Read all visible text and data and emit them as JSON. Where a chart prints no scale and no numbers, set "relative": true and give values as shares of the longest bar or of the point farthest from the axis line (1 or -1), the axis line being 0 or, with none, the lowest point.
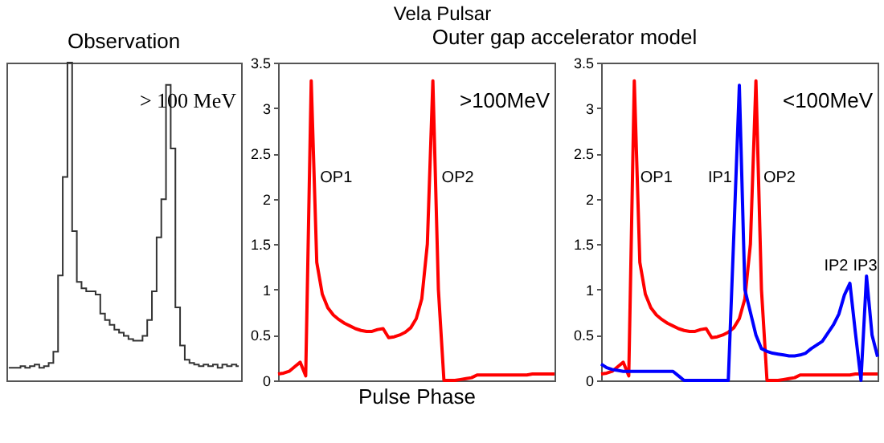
{
  "chart_data": [
    {
      "type": "step",
      "title": "Observation",
      "relative": true,
      "grid": false,
      "categories": [
        null,
        null,
        null,
        null,
        null,
        null,
        null,
        null,
        null,
        null,
        null,
        null,
        null,
        null,
        null,
        null,
        null,
        null,
        null,
        null,
        null,
        null,
        null,
        null,
        null,
        null,
        null,
        null,
        null,
        null,
        null,
        null,
        null,
        null,
        null,
        null,
        null,
        null,
        null,
        null,
        null,
        null,
        null,
        null,
        null,
        null,
        null,
        null,
        null,
        null
      ],
      "series": [
        {
          "color": "#333333",
          "values": [
            0.04,
            0.04,
            0.04,
            0.045,
            0.04,
            0.045,
            0.05,
            0.04,
            0.045,
            0.055,
            0.09,
            0.33,
            0.64,
            1.0,
            0.47,
            0.31,
            0.29,
            0.28,
            0.28,
            0.27,
            0.21,
            0.19,
            0.175,
            0.16,
            0.15,
            0.14,
            0.13,
            0.125,
            0.125,
            0.14,
            0.19,
            0.28,
            0.45,
            0.57,
            0.93,
            0.73,
            0.23,
            0.11,
            0.065,
            0.055,
            0.05,
            0.045,
            0.05,
            0.045,
            0.05,
            0.04,
            0.05,
            0.045,
            0.05,
            0.045
          ]
        }
      ],
      "annotations": [
        "> 100 MeV"
      ]
    },
    {
      "type": "line",
      "title": "Vela Pulsar",
      "subtitle": "Outer gap accelerator model",
      "xlabel": "Pulse Phase",
      "grid": false,
      "categories": [
        null,
        null,
        null,
        null,
        null,
        null,
        null,
        null,
        null,
        null,
        null,
        null,
        null,
        null,
        null,
        null,
        null,
        null,
        null,
        null,
        null,
        null,
        null,
        null,
        null,
        null,
        null,
        null,
        null,
        null,
        null,
        null,
        null,
        null,
        null,
        null,
        null,
        null,
        null,
        null,
        null,
        null,
        null,
        null,
        null,
        null,
        null,
        null,
        null,
        null,
        null
      ],
      "ylim": [
        0,
        3.5
      ],
      "yticks": [
        0,
        0.5,
        1,
        1.5,
        2,
        2.5,
        3,
        3.5
      ],
      "series": [
        {
          "color": "#ff0000",
          "values": [
            0.07,
            0.08,
            0.1,
            0.15,
            0.2,
            0.05,
            3.3,
            1.3,
            0.95,
            0.8,
            0.72,
            0.67,
            0.63,
            0.6,
            0.57,
            0.55,
            0.54,
            0.54,
            0.56,
            0.57,
            0.47,
            0.48,
            0.5,
            0.53,
            0.58,
            0.68,
            0.9,
            1.5,
            3.3,
            1.0,
            0,
            0,
            0,
            0.01,
            0.02,
            0.03,
            0.06,
            0.06,
            0.06,
            0.06,
            0.06,
            0.06,
            0.06,
            0.06,
            0.06,
            0.06,
            0.07,
            0.07,
            0.07,
            0.07,
            0.07
          ]
        }
      ],
      "annotations": [
        ">100MeV",
        "OP1",
        "OP2"
      ]
    },
    {
      "type": "line",
      "grid": false,
      "categories": [
        null,
        null,
        null,
        null,
        null,
        null,
        null,
        null,
        null,
        null,
        null,
        null,
        null,
        null,
        null,
        null,
        null,
        null,
        null,
        null,
        null,
        null,
        null,
        null,
        null,
        null,
        null,
        null,
        null,
        null,
        null,
        null,
        null,
        null,
        null,
        null,
        null,
        null,
        null,
        null,
        null,
        null,
        null,
        null,
        null,
        null,
        null,
        null,
        null,
        null,
        null
      ],
      "ylim": [
        0,
        3.5
      ],
      "yticks": [
        0,
        0.5,
        1,
        1.5,
        2,
        2.5,
        3,
        3.5
      ],
      "series": [
        {
          "color": "#ff0000",
          "values": [
            0.07,
            0.08,
            0.1,
            0.15,
            0.2,
            0.05,
            3.3,
            1.3,
            0.95,
            0.8,
            0.72,
            0.67,
            0.63,
            0.6,
            0.57,
            0.55,
            0.54,
            0.54,
            0.56,
            0.57,
            0.47,
            0.48,
            0.5,
            0.53,
            0.58,
            0.68,
            0.9,
            1.5,
            3.3,
            1.0,
            0,
            0,
            0,
            0.01,
            0.02,
            0.03,
            0.06,
            0.06,
            0.06,
            0.06,
            0.06,
            0.06,
            0.06,
            0.06,
            0.06,
            0.06,
            0.07,
            0.07,
            0.07,
            0.07,
            0.07
          ]
        },
        {
          "color": "#0000ff",
          "values": [
            0.18,
            0.14,
            0.12,
            0.11,
            0.1,
            0.1,
            0.1,
            0.1,
            0.1,
            0.1,
            0.1,
            0.1,
            0.1,
            0.1,
            0.05,
            0,
            0,
            0,
            0,
            0,
            0,
            0,
            0,
            0,
            1.6,
            3.25,
            1.0,
            0.75,
            0.5,
            0.35,
            0.32,
            0.3,
            0.29,
            0.28,
            0.27,
            0.27,
            0.28,
            0.3,
            0.35,
            0.39,
            0.43,
            0.52,
            0.61,
            0.73,
            0.94,
            1.07,
            0.52,
            0,
            1.15,
            0.5,
            0.26
          ]
        }
      ],
      "annotations": [
        "<100MeV",
        "OP1",
        "IP1",
        "OP2",
        "IP2",
        "IP3"
      ]
    }
  ]
}
